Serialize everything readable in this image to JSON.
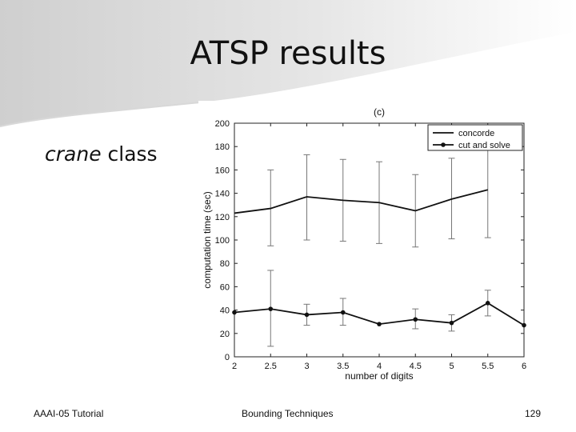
{
  "slide": {
    "title": "ATSP results",
    "subtitle_italic": "crane",
    "subtitle_rest": " class"
  },
  "footer": {
    "left": "AAAI-05 Tutorial",
    "center": "Bounding Techniques",
    "page": "129"
  },
  "chart_data": {
    "type": "line",
    "title": "(c)",
    "xlabel": "number of digits",
    "ylabel": "computation time (sec)",
    "xlim": [
      2,
      6
    ],
    "ylim": [
      0,
      200
    ],
    "xticks": [
      "2",
      "2.5",
      "3",
      "3.5",
      "4",
      "4.5",
      "5",
      "5.5",
      "6"
    ],
    "yticks": [
      "0",
      "20",
      "40",
      "60",
      "80",
      "100",
      "120",
      "140",
      "160",
      "180",
      "200"
    ],
    "legend_position": "top-right",
    "grid": false,
    "series": [
      {
        "name": "concorde",
        "marker": "none",
        "color": "#111111",
        "x": [
          2,
          2.5,
          3,
          3.5,
          4,
          4.5,
          5,
          5.5
        ],
        "y": [
          123,
          127,
          137,
          134,
          132,
          125,
          135,
          143
        ],
        "err_low": [
          null,
          95,
          100,
          99,
          97,
          94,
          101,
          102
        ],
        "err_high": [
          null,
          160,
          173,
          169,
          167,
          156,
          170,
          182
        ]
      },
      {
        "name": "cut and solve",
        "marker": "dot",
        "color": "#111111",
        "x": [
          2,
          2.5,
          3,
          3.5,
          4,
          4.5,
          5,
          5.5,
          6
        ],
        "y": [
          38,
          41,
          36,
          38,
          28,
          32,
          29,
          46,
          27
        ],
        "err_low": [
          null,
          9,
          27,
          27,
          null,
          24,
          22,
          35,
          null
        ],
        "err_high": [
          null,
          74,
          45,
          50,
          38,
          41,
          36,
          57,
          null
        ]
      }
    ]
  }
}
